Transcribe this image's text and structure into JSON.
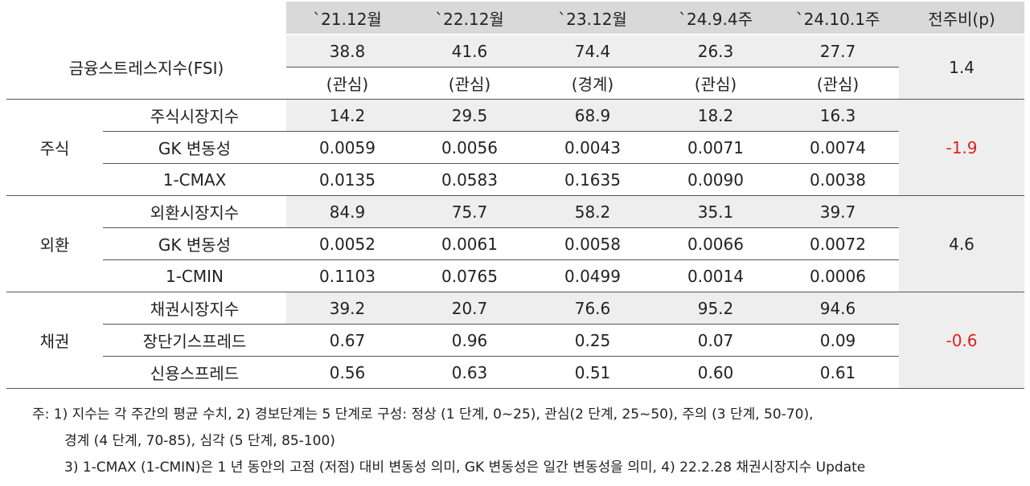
{
  "header": {
    "columns": [
      "`21.12월",
      "`22.12월",
      "`23.12월",
      "`24.9.4주",
      "`24.10.1주",
      "전주비(p)"
    ]
  },
  "fsi": {
    "label": "금융스트레스지수(FSI)",
    "values": [
      "38.8",
      "41.6",
      "74.4",
      "26.3",
      "27.7"
    ],
    "stages": [
      "(관심)",
      "(관심)",
      "(경계)",
      "(관심)",
      "(관심)"
    ],
    "change": "1.4"
  },
  "sections": [
    {
      "label": "주식",
      "change": "-1.9",
      "change_color": "#e02020",
      "rows": [
        {
          "label": "주식시장지수",
          "values": [
            "14.2",
            "29.5",
            "68.9",
            "18.2",
            "16.3"
          ]
        },
        {
          "label": "GK 변동성",
          "values": [
            "0.0059",
            "0.0056",
            "0.0043",
            "0.0071",
            "0.0074"
          ]
        },
        {
          "label": "1-CMAX",
          "values": [
            "0.0135",
            "0.0583",
            "0.1635",
            "0.0090",
            "0.0038"
          ]
        }
      ]
    },
    {
      "label": "외환",
      "change": "4.6",
      "change_color": "#222222",
      "rows": [
        {
          "label": "외환시장지수",
          "values": [
            "84.9",
            "75.7",
            "58.2",
            "35.1",
            "39.7"
          ]
        },
        {
          "label": "GK 변동성",
          "values": [
            "0.0052",
            "0.0061",
            "0.0058",
            "0.0066",
            "0.0072"
          ]
        },
        {
          "label": "1-CMIN",
          "values": [
            "0.1103",
            "0.0765",
            "0.0499",
            "0.0014",
            "0.0006"
          ]
        }
      ]
    },
    {
      "label": "채권",
      "change": "-0.6",
      "change_color": "#e02020",
      "rows": [
        {
          "label": "채권시장지수",
          "values": [
            "39.2",
            "20.7",
            "76.6",
            "95.2",
            "94.6"
          ]
        },
        {
          "label": "장단기스프레드",
          "values": [
            "0.67",
            "0.96",
            "0.25",
            "0.07",
            "0.09"
          ]
        },
        {
          "label": "신용스프레드",
          "values": [
            "0.56",
            "0.63",
            "0.51",
            "0.60",
            "0.61"
          ]
        }
      ]
    }
  ],
  "notes": {
    "line1": "주: 1) 지수는 각 주간의 평균 수치, 2) 경보단계는 5 단계로 구성: 정상 (1 단계, 0~25), 관심(2 단계, 25~50), 주의 (3 단계, 50-70),",
    "line2": "경계 (4 단계, 70-85), 심각 (5 단계, 85-100)",
    "line3": "3) 1-CMAX (1-CMIN)은 1 년 동안의 고점 (저점) 대비 변동성 의미, GK 변동성은 일간 변동성을 의미, 4) 22.2.28 채권시장지수 Update"
  }
}
